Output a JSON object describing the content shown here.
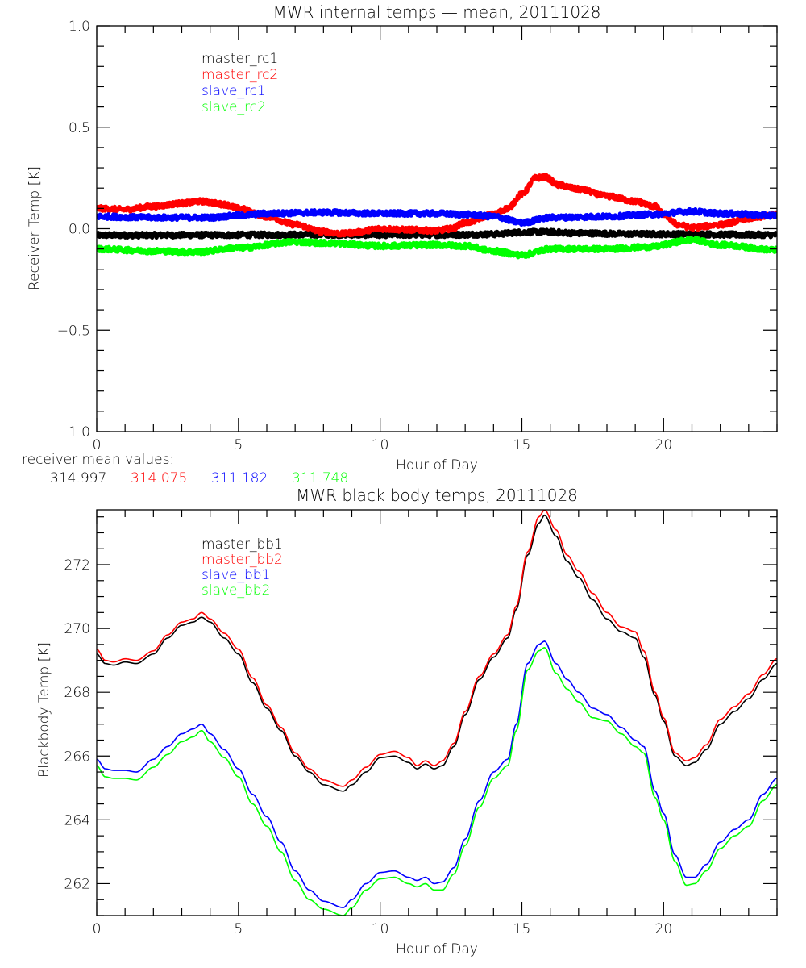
{
  "chart_data": [
    {
      "type": "line",
      "title": "MWR internal temps — mean, 20111028",
      "xlabel": "Hour of Day",
      "ylabel": "Receiver Temp [K]",
      "xlim": [
        0,
        24
      ],
      "ylim": [
        -1.0,
        1.0
      ],
      "xticks": [
        0,
        5,
        10,
        15,
        20
      ],
      "xtick_labels": [
        "0",
        "5",
        "10",
        "15",
        "20"
      ],
      "x_minor_step": 1,
      "yticks": [
        -1.0,
        -0.5,
        0.0,
        0.5,
        1.0
      ],
      "ytick_labels": [
        "−1.0",
        "−0.5",
        "0.0",
        "0.5",
        "1.0"
      ],
      "y_minor_step": 0.1,
      "grid": false,
      "legend_position": "top-left",
      "noisy": true,
      "series": [
        {
          "name": "master_rc1",
          "color": "#000000",
          "x": [
            0,
            2,
            4,
            6,
            8,
            10,
            12,
            14,
            15,
            15.8,
            17,
            19,
            21,
            23,
            24
          ],
          "y": [
            -0.032,
            -0.032,
            -0.031,
            -0.03,
            -0.029,
            -0.03,
            -0.03,
            -0.027,
            -0.018,
            -0.016,
            -0.022,
            -0.026,
            -0.027,
            -0.03,
            -0.03
          ]
        },
        {
          "name": "master_rc2",
          "color": "#ff0000",
          "x": [
            0,
            1,
            2,
            3,
            3.7,
            4.5,
            5,
            6,
            7,
            8,
            8.7,
            9,
            10,
            11,
            12,
            12.5,
            13,
            14,
            14.5,
            15,
            15.5,
            15.8,
            16.3,
            17,
            18,
            19,
            19.7,
            20,
            20.5,
            21,
            22,
            23,
            24
          ],
          "y": [
            0.1,
            0.095,
            0.11,
            0.125,
            0.135,
            0.12,
            0.1,
            0.06,
            0.02,
            -0.015,
            -0.025,
            -0.02,
            0.0,
            -0.005,
            -0.01,
            0.0,
            0.03,
            0.07,
            0.1,
            0.17,
            0.25,
            0.255,
            0.215,
            0.195,
            0.16,
            0.135,
            0.11,
            0.07,
            0.02,
            0.005,
            0.02,
            0.05,
            0.07
          ]
        },
        {
          "name": "slave_rc1",
          "color": "#0000ff",
          "x": [
            0,
            2,
            4,
            5,
            6,
            8,
            10,
            12,
            13,
            14,
            15,
            16,
            18,
            19.5,
            21,
            22,
            24
          ],
          "y": [
            0.06,
            0.055,
            0.055,
            0.065,
            0.075,
            0.08,
            0.075,
            0.075,
            0.07,
            0.06,
            0.03,
            0.055,
            0.06,
            0.07,
            0.085,
            0.075,
            0.065
          ]
        },
        {
          "name": "slave_rc2",
          "color": "#00ff00",
          "x": [
            0,
            2,
            3.5,
            5,
            7,
            8,
            10,
            12,
            13,
            14,
            15,
            16,
            18,
            19.5,
            21,
            22,
            24
          ],
          "y": [
            -0.1,
            -0.11,
            -0.115,
            -0.095,
            -0.065,
            -0.07,
            -0.085,
            -0.08,
            -0.085,
            -0.11,
            -0.13,
            -0.1,
            -0.1,
            -0.09,
            -0.055,
            -0.08,
            -0.105
          ]
        }
      ],
      "annotation": {
        "label": "receiver mean values:",
        "values": [
          {
            "text": "314.997",
            "color": "#000000"
          },
          {
            "text": "314.075",
            "color": "#ff0000"
          },
          {
            "text": "311.182",
            "color": "#0000ff"
          },
          {
            "text": "311.748",
            "color": "#00ff00"
          }
        ]
      }
    },
    {
      "type": "line",
      "title": "MWR black body temps, 20111028",
      "xlabel": "Hour of Day",
      "ylabel": "Blackbody Temp [K]",
      "xlim": [
        0,
        24
      ],
      "ylim": [
        261.0,
        273.72
      ],
      "xticks": [
        0,
        5,
        10,
        15,
        20
      ],
      "xtick_labels": [
        "0",
        "5",
        "10",
        "15",
        "20"
      ],
      "x_minor_step": 1,
      "yticks": [
        262,
        264,
        266,
        268,
        270,
        272
      ],
      "ytick_labels": [
        "262",
        "264",
        "266",
        "268",
        "270",
        "272"
      ],
      "y_minor_step": 0.5,
      "grid": false,
      "legend_position": "top-left",
      "noisy": false,
      "series": [
        {
          "name": "master_bb1",
          "color": "#000000",
          "x": [
            0,
            0.3,
            0.6,
            1.0,
            1.4,
            2.0,
            2.5,
            3.0,
            3.4,
            3.7,
            4.0,
            4.5,
            5.0,
            5.5,
            6.0,
            6.5,
            7.0,
            7.5,
            8.0,
            8.7,
            9.0,
            9.5,
            10.0,
            10.5,
            11.0,
            11.3,
            11.6,
            11.9,
            12.2,
            12.6,
            13.0,
            13.5,
            14.0,
            14.5,
            14.8,
            15.2,
            15.6,
            15.8,
            16.2,
            16.6,
            17.0,
            17.5,
            18.0,
            18.5,
            19.0,
            19.3,
            19.7,
            20.0,
            20.4,
            20.8,
            21.1,
            21.5,
            22.0,
            22.5,
            23.0,
            23.5,
            24.0
          ],
          "y": [
            269.2,
            268.9,
            268.85,
            268.95,
            268.9,
            269.2,
            269.7,
            270.1,
            270.2,
            270.35,
            270.2,
            269.7,
            269.2,
            268.3,
            267.5,
            266.8,
            266.0,
            265.5,
            265.1,
            264.9,
            265.1,
            265.5,
            265.95,
            266.0,
            265.8,
            265.6,
            265.75,
            265.6,
            265.7,
            266.3,
            267.3,
            268.4,
            269.1,
            269.7,
            270.6,
            272.3,
            273.3,
            273.55,
            272.9,
            272.1,
            271.6,
            270.9,
            270.3,
            269.9,
            269.7,
            269.1,
            267.9,
            267.1,
            266.0,
            265.7,
            265.8,
            266.2,
            267.0,
            267.4,
            267.8,
            268.4,
            268.9
          ]
        },
        {
          "name": "master_bb2",
          "color": "#ff0000",
          "x": [
            0,
            0.3,
            0.6,
            1.0,
            1.4,
            2.0,
            2.5,
            3.0,
            3.4,
            3.7,
            4.0,
            4.5,
            5.0,
            5.5,
            6.0,
            6.5,
            7.0,
            7.5,
            8.0,
            8.7,
            9.0,
            9.5,
            10.0,
            10.5,
            11.0,
            11.3,
            11.6,
            11.9,
            12.2,
            12.6,
            13.0,
            13.5,
            14.0,
            14.5,
            14.8,
            15.2,
            15.6,
            15.8,
            16.2,
            16.6,
            17.0,
            17.5,
            18.0,
            18.5,
            19.0,
            19.3,
            19.7,
            20.0,
            20.4,
            20.8,
            21.1,
            21.5,
            22.0,
            22.5,
            23.0,
            23.5,
            24.0
          ],
          "y": [
            269.35,
            269.0,
            268.95,
            269.05,
            269.0,
            269.3,
            269.8,
            270.2,
            270.3,
            270.5,
            270.3,
            269.85,
            269.35,
            268.45,
            267.6,
            266.9,
            266.1,
            265.6,
            265.25,
            265.05,
            265.25,
            265.65,
            266.05,
            266.15,
            265.95,
            265.7,
            265.85,
            265.7,
            265.85,
            266.4,
            267.4,
            268.5,
            269.2,
            269.8,
            270.7,
            272.4,
            273.5,
            273.72,
            273.1,
            272.3,
            271.8,
            271.1,
            270.5,
            270.05,
            269.9,
            269.3,
            268.0,
            267.2,
            266.1,
            265.85,
            265.95,
            266.35,
            267.15,
            267.55,
            267.95,
            268.55,
            269.05
          ]
        },
        {
          "name": "slave_bb1",
          "color": "#0000ff",
          "x": [
            0,
            0.3,
            0.6,
            1.0,
            1.4,
            2.0,
            2.5,
            3.0,
            3.4,
            3.7,
            4.0,
            4.5,
            5.0,
            5.5,
            6.0,
            6.5,
            7.0,
            7.5,
            8.0,
            8.7,
            9.0,
            9.5,
            10.0,
            10.5,
            11.0,
            11.3,
            11.6,
            11.9,
            12.2,
            12.6,
            13.0,
            13.5,
            14.0,
            14.5,
            14.8,
            15.2,
            15.6,
            15.8,
            16.2,
            16.6,
            17.0,
            17.5,
            18.0,
            18.5,
            19.0,
            19.3,
            19.7,
            20.0,
            20.4,
            20.8,
            21.1,
            21.5,
            22.0,
            22.5,
            23.0,
            23.5,
            24.0
          ],
          "y": [
            265.9,
            265.6,
            265.55,
            265.55,
            265.5,
            265.9,
            266.3,
            266.7,
            266.85,
            267.0,
            266.7,
            266.2,
            265.6,
            264.8,
            264.1,
            263.3,
            262.4,
            261.8,
            261.45,
            261.25,
            261.5,
            262.0,
            262.35,
            262.4,
            262.2,
            262.1,
            262.2,
            262.0,
            262.05,
            262.5,
            263.4,
            264.6,
            265.5,
            265.9,
            267.0,
            268.9,
            269.5,
            269.6,
            268.9,
            268.4,
            268.0,
            267.5,
            267.3,
            266.9,
            266.5,
            266.3,
            264.9,
            264.2,
            262.9,
            262.2,
            262.2,
            262.6,
            263.3,
            263.7,
            264.0,
            264.8,
            265.3
          ]
        },
        {
          "name": "slave_bb2",
          "color": "#00ff00",
          "x": [
            0,
            0.3,
            0.6,
            1.0,
            1.4,
            2.0,
            2.5,
            3.0,
            3.4,
            3.7,
            4.0,
            4.5,
            5.0,
            5.5,
            6.0,
            6.5,
            7.0,
            7.5,
            8.0,
            8.7,
            9.0,
            9.5,
            10.0,
            10.5,
            11.0,
            11.3,
            11.6,
            11.9,
            12.2,
            12.6,
            13.0,
            13.5,
            14.0,
            14.5,
            14.8,
            15.2,
            15.6,
            15.8,
            16.2,
            16.6,
            17.0,
            17.5,
            18.0,
            18.5,
            19.0,
            19.3,
            19.7,
            20.0,
            20.4,
            20.8,
            21.1,
            21.5,
            22.0,
            22.5,
            23.0,
            23.5,
            24.0
          ],
          "y": [
            265.7,
            265.35,
            265.3,
            265.3,
            265.25,
            265.65,
            266.05,
            266.45,
            266.6,
            266.8,
            266.45,
            265.95,
            265.35,
            264.5,
            263.8,
            263.0,
            262.1,
            261.5,
            261.2,
            261.0,
            261.25,
            261.8,
            262.15,
            262.2,
            262.0,
            261.9,
            262.0,
            261.8,
            261.8,
            262.3,
            263.2,
            264.4,
            265.3,
            265.7,
            266.8,
            268.7,
            269.3,
            269.4,
            268.6,
            268.1,
            267.7,
            267.2,
            267.1,
            266.7,
            266.3,
            266.1,
            264.7,
            264.0,
            262.7,
            261.95,
            262.0,
            262.4,
            263.1,
            263.5,
            263.8,
            264.6,
            265.1
          ]
        }
      ]
    }
  ]
}
